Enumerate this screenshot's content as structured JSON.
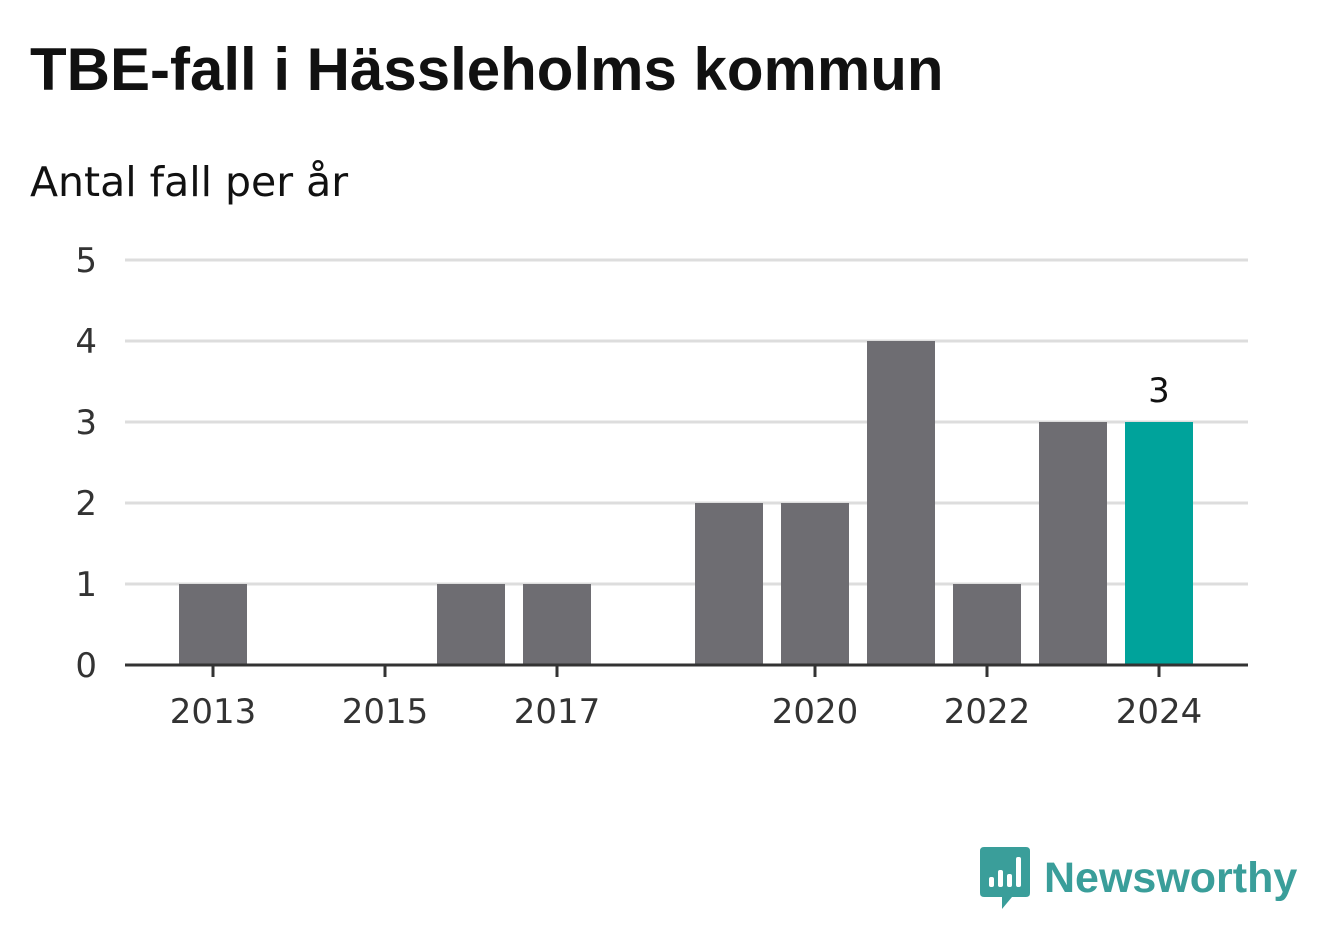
{
  "title": "TBE-fall i Hässleholms kommun",
  "subtitle": "Antal fall per år",
  "brand": {
    "name": "Newsworthy",
    "icon": "newsworthy-logo-icon"
  },
  "colors": {
    "bar": "#6e6d72",
    "highlight": "#00a39b",
    "grid": "#dddddd",
    "axis": "#333333",
    "brand": "#3a9e9a"
  },
  "chart_data": {
    "type": "bar",
    "categories": [
      "2013",
      "2014",
      "2015",
      "2016",
      "2017",
      "2018",
      "2019",
      "2020",
      "2021",
      "2022",
      "2023",
      "2024"
    ],
    "values": [
      1,
      0,
      0,
      1,
      1,
      0,
      2,
      2,
      4,
      1,
      3,
      3
    ],
    "x_tick_labels": [
      "2013",
      "2015",
      "2017",
      "2020",
      "2022",
      "2024"
    ],
    "y_ticks": [
      0,
      1,
      2,
      3,
      4,
      5
    ],
    "ylim": [
      0,
      5
    ],
    "highlight_category": "2024",
    "data_labels": [
      {
        "category": "2024",
        "text": "3"
      }
    ],
    "grid": true,
    "xlabel": "",
    "ylabel": ""
  }
}
